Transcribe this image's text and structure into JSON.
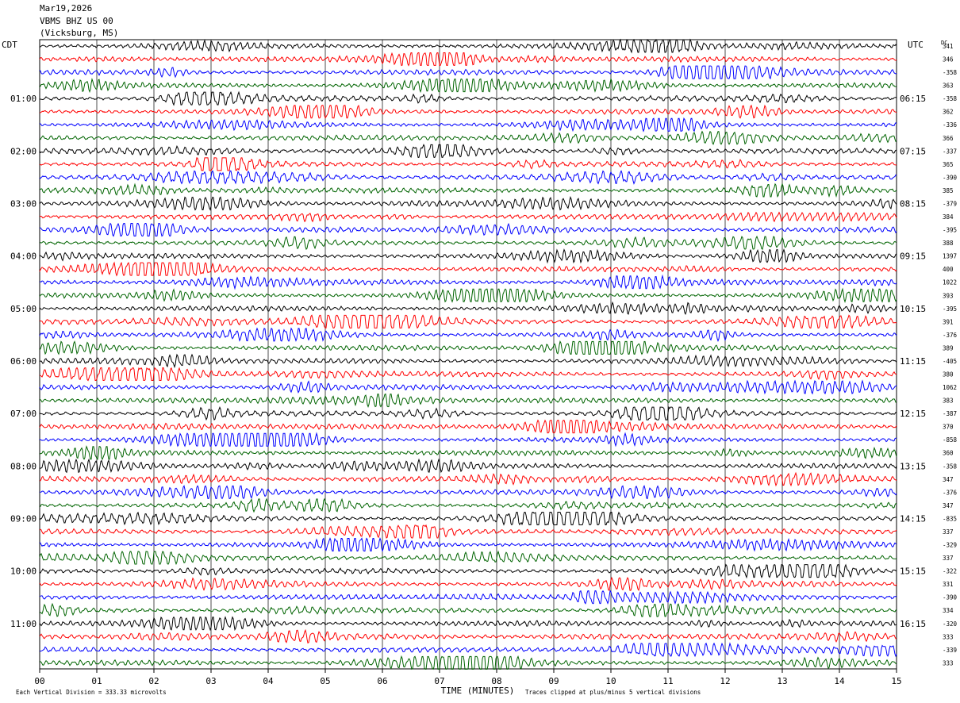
{
  "header": {
    "date": "Mar19,2026",
    "station": "VBMS BHZ US 00",
    "location": "(Vicksburg, MS)"
  },
  "chart_data": {
    "type": "line",
    "left_timezone": "CDT",
    "right_timezone": "UTC",
    "dc_label": "DC",
    "xlabel": "TIME (MINUTES)",
    "xlim": [
      0,
      15
    ],
    "x_ticks": [
      "00",
      "01",
      "02",
      "03",
      "04",
      "05",
      "06",
      "07",
      "08",
      "09",
      "10",
      "11",
      "12",
      "13",
      "14",
      "15"
    ],
    "left_hour_labels": [
      "01:00",
      "02:00",
      "03:00",
      "04:00",
      "05:00",
      "06:00",
      "07:00",
      "08:00",
      "09:00",
      "10:00",
      "11:00"
    ],
    "right_hour_labels": [
      "06:15",
      "07:15",
      "08:15",
      "09:15",
      "10:15",
      "11:15",
      "12:15",
      "13:15",
      "14:15",
      "15:15",
      "16:15"
    ],
    "trace_colors": [
      "#000000",
      "#ff0000",
      "#0000ff",
      "#006400"
    ],
    "dc_offsets": [
      "341",
      "346",
      "-358",
      "363",
      "-358",
      "362",
      "-336",
      "366",
      "-337",
      "365",
      "-390",
      "385",
      "-379",
      "384",
      "-395",
      "388",
      "1397",
      "400",
      "1022",
      "393",
      "-395",
      "391",
      "-376",
      "389",
      "-405",
      "380",
      "1062",
      "383",
      "-387",
      "370",
      "-858",
      "360",
      "-358",
      "347",
      "-376",
      "347",
      "-835",
      "337",
      "-329",
      "337",
      "-322",
      "331",
      "-390",
      "334",
      "-320",
      "333",
      "-339",
      "333"
    ],
    "footer_left": "Each Vertical Division =  333.33 microvolts",
    "footer_right": "Traces clipped at plus/minus 5 vertical divisions"
  }
}
